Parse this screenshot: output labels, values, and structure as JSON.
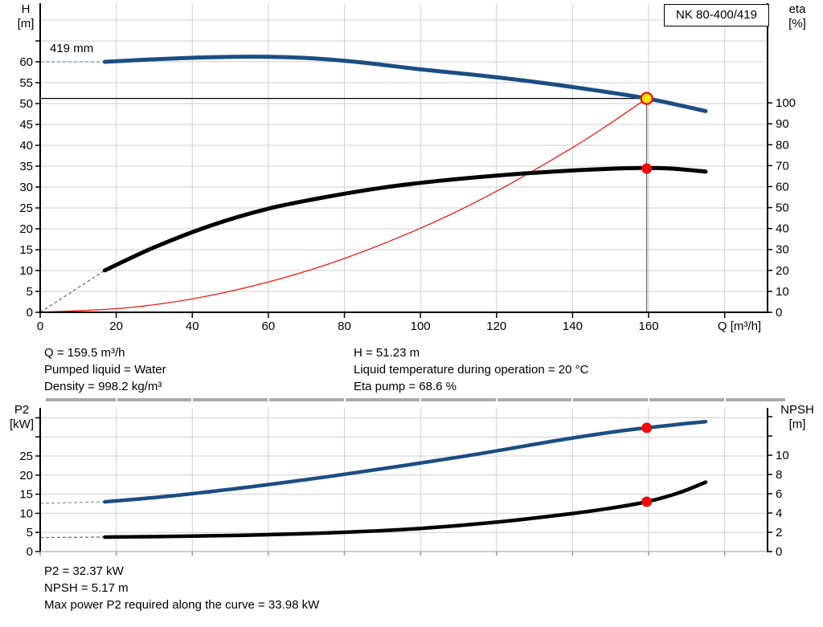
{
  "header": {
    "model_box": "NK 80-400/419"
  },
  "top_chart_labels": {
    "left_axis_line1": "H",
    "left_axis_line2": "[m]",
    "right_axis_line1": "eta",
    "right_axis_line2": "[%]",
    "impeller": "419 mm"
  },
  "bottom_chart_labels": {
    "left_axis_line1": "P2",
    "left_axis_line2": "[kW]",
    "right_axis_line1": "NPSH",
    "right_axis_line2": "[m]"
  },
  "info_top": {
    "col1": [
      "Q = 159.5 m³/h",
      "Pumped liquid = Water",
      "Density = 998.2 kg/m³"
    ],
    "col2": [
      "H = 51.23 m",
      "Liquid temperature during operation = 20 °C",
      "Eta pump = 68.6 %"
    ]
  },
  "info_bottom": [
    "P2 = 32.37 kW",
    "NPSH = 5.17 m",
    "Max power P2 required along the curve = 33.98 kW"
  ],
  "colors": {
    "curve_blue": "#1b4e82",
    "curve_black": "#000000",
    "curve_red": "#f01810",
    "dash_blue": "#8aa0bf",
    "dash_gray": "#777777",
    "grid": "#cfcfcf",
    "duty_yellow": "#ffe400",
    "marker_red": "#f00a0a",
    "axis_gray": "#999999"
  },
  "chart_data": [
    {
      "type": "line",
      "name": "head-efficiency-chart",
      "x": {
        "label": "Q [m³/h]",
        "ticks": [
          0,
          20,
          40,
          60,
          80,
          100,
          120,
          140,
          160,
          180
        ],
        "labeled": [
          0,
          20,
          40,
          60,
          80,
          100,
          120,
          140,
          160
        ],
        "min": 0,
        "max": 191
      },
      "y_left": {
        "label": "H [m]",
        "ticks": [
          0,
          5,
          10,
          15,
          20,
          25,
          30,
          35,
          40,
          45,
          50,
          55,
          60,
          65
        ],
        "labeled": [
          0,
          5,
          10,
          15,
          20,
          25,
          30,
          35,
          40,
          45,
          50,
          55,
          60
        ],
        "grid": [
          5,
          10,
          15,
          20,
          25,
          30,
          35,
          40,
          45,
          50,
          55,
          60,
          65,
          70
        ],
        "min": 0,
        "max": 74
      },
      "y_right": {
        "label": "eta [%]",
        "ticks": [
          0,
          10,
          20,
          30,
          40,
          50,
          60,
          70,
          80,
          90,
          100
        ],
        "labeled": [
          0,
          10,
          20,
          30,
          40,
          50,
          60,
          70,
          80,
          90,
          100
        ],
        "min": 0,
        "max": 147
      },
      "series": [
        {
          "id": "system-curve",
          "axis": "left",
          "color_key": "curve_red",
          "width": 1.3,
          "points": [
            [
              0,
              0
            ],
            [
              25,
              1.26
            ],
            [
              50,
              5.03
            ],
            [
              75,
              11.33
            ],
            [
              100,
              20.14
            ],
            [
              120,
              29.0
            ],
            [
              140,
              39.47
            ],
            [
              150,
              45.3
            ],
            [
              159.5,
              51.23
            ]
          ]
        },
        {
          "id": "efficiency-curve",
          "axis": "right",
          "color_key": "curve_black",
          "width": 5,
          "dash_lead": {
            "from": [
              0,
              0
            ],
            "to": [
              17,
              20
            ],
            "color_key": "dash_gray"
          },
          "points": [
            [
              17,
              20
            ],
            [
              30,
              31
            ],
            [
              45,
              41.5
            ],
            [
              60,
              49.5
            ],
            [
              75,
              55
            ],
            [
              90,
              59.5
            ],
            [
              105,
              62.8
            ],
            [
              120,
              65.3
            ],
            [
              135,
              67.2
            ],
            [
              148,
              68.4
            ],
            [
              158,
              68.9
            ],
            [
              166,
              68.6
            ],
            [
              175,
              67.2
            ]
          ]
        },
        {
          "id": "head-curve",
          "axis": "left",
          "color_key": "curve_blue",
          "width": 5,
          "dash_lead": {
            "from": [
              0,
              60
            ],
            "to": [
              17,
              60
            ],
            "color_key": "dash_blue"
          },
          "points": [
            [
              17,
              60.0
            ],
            [
              30,
              60.6
            ],
            [
              45,
              61.1
            ],
            [
              60,
              61.2
            ],
            [
              72,
              60.8
            ],
            [
              85,
              59.8
            ],
            [
              100,
              58.2
            ],
            [
              115,
              56.8
            ],
            [
              130,
              55.2
            ],
            [
              145,
              53.3
            ],
            [
              159.5,
              51.23
            ],
            [
              175,
              48.2
            ]
          ]
        }
      ],
      "duty_point": {
        "q": 159.5,
        "h": 51.23,
        "eta": 68.6
      }
    },
    {
      "type": "line",
      "name": "power-npsh-chart",
      "x": {
        "label": "",
        "ticks": [
          0,
          20,
          40,
          60,
          80,
          100,
          120,
          140,
          160,
          180
        ],
        "labeled": [],
        "min": 0,
        "max": 191
      },
      "y_left": {
        "label": "P2 [kW]",
        "ticks": [
          0,
          5,
          10,
          15,
          20,
          25,
          30,
          35
        ],
        "labeled": [
          0,
          5,
          10,
          15,
          20,
          25
        ],
        "grid": [
          5,
          10,
          15,
          20,
          25,
          30,
          35
        ],
        "min": 0,
        "max": 37.5
      },
      "y_right": {
        "label": "NPSH [m]",
        "ticks": [
          0,
          2,
          4,
          6,
          8,
          10,
          12,
          14
        ],
        "labeled": [
          0,
          2,
          4,
          6,
          8,
          10
        ],
        "min": 0,
        "max": 15
      },
      "series": [
        {
          "id": "p2-curve",
          "axis": "left",
          "color_key": "curve_blue",
          "width": 4.5,
          "dash_lead": {
            "from": [
              0,
              12.6
            ],
            "to": [
              17,
              13.0
            ],
            "color_key": "dash_blue"
          },
          "points": [
            [
              17,
              13.0
            ],
            [
              35,
              14.6
            ],
            [
              55,
              16.9
            ],
            [
              75,
              19.5
            ],
            [
              95,
              22.4
            ],
            [
              115,
              25.5
            ],
            [
              135,
              28.9
            ],
            [
              150,
              31.2
            ],
            [
              159.5,
              32.37
            ],
            [
              168,
              33.3
            ],
            [
              175,
              34.0
            ]
          ]
        },
        {
          "id": "npsh-curve",
          "axis": "right",
          "color_key": "curve_black",
          "width": 4.5,
          "dash_lead": {
            "from": [
              0,
              1.45
            ],
            "to": [
              17,
              1.5
            ],
            "color_key": "dash_gray"
          },
          "points": [
            [
              17,
              1.5
            ],
            [
              40,
              1.6
            ],
            [
              60,
              1.75
            ],
            [
              80,
              2.0
            ],
            [
              100,
              2.4
            ],
            [
              120,
              3.05
            ],
            [
              140,
              3.95
            ],
            [
              150,
              4.5
            ],
            [
              159.5,
              5.17
            ],
            [
              168,
              6.1
            ],
            [
              175,
              7.2
            ]
          ]
        }
      ],
      "markers": [
        {
          "q": 159.5,
          "value": 32.37,
          "axis": "left"
        },
        {
          "q": 159.5,
          "value": 5.17,
          "axis": "right"
        }
      ]
    }
  ]
}
